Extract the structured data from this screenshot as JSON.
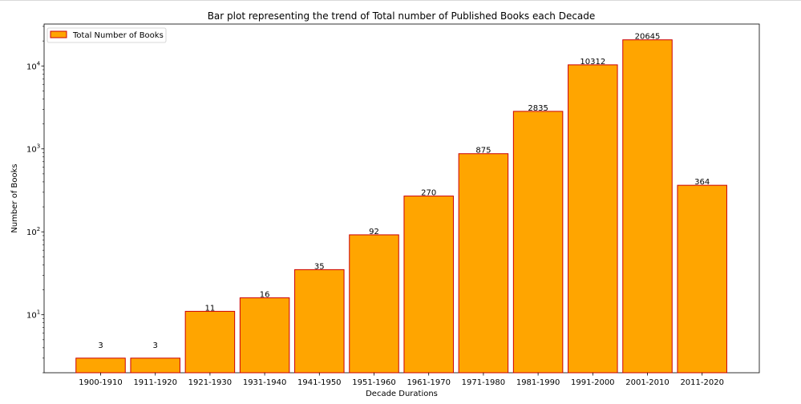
{
  "chart_data": {
    "type": "bar",
    "title": "Bar plot representing the trend of Total number of Published Books each Decade",
    "xlabel": "Decade Durations",
    "ylabel": "Number of Books",
    "yscale": "log",
    "ylim": [
      2,
      32000
    ],
    "grid": false,
    "legend_position": "top-left",
    "categories": [
      "1900-1910",
      "1911-1920",
      "1921-1930",
      "1931-1940",
      "1941-1950",
      "1951-1960",
      "1961-1970",
      "1971-1980",
      "1981-1990",
      "1991-2000",
      "2001-2010",
      "2011-2020"
    ],
    "series": [
      {
        "name": "Total Number of Books",
        "values": [
          3,
          3,
          11,
          16,
          35,
          92,
          270,
          875,
          2835,
          10312,
          20645,
          364
        ],
        "color": "#ffa500",
        "edge_color": "#cc0000"
      }
    ],
    "y_ticks": [
      {
        "value": 10,
        "base": "10",
        "exp": "1"
      },
      {
        "value": 100,
        "base": "10",
        "exp": "2"
      },
      {
        "value": 1000,
        "base": "10",
        "exp": "3"
      },
      {
        "value": 10000,
        "base": "10",
        "exp": "4"
      }
    ]
  }
}
